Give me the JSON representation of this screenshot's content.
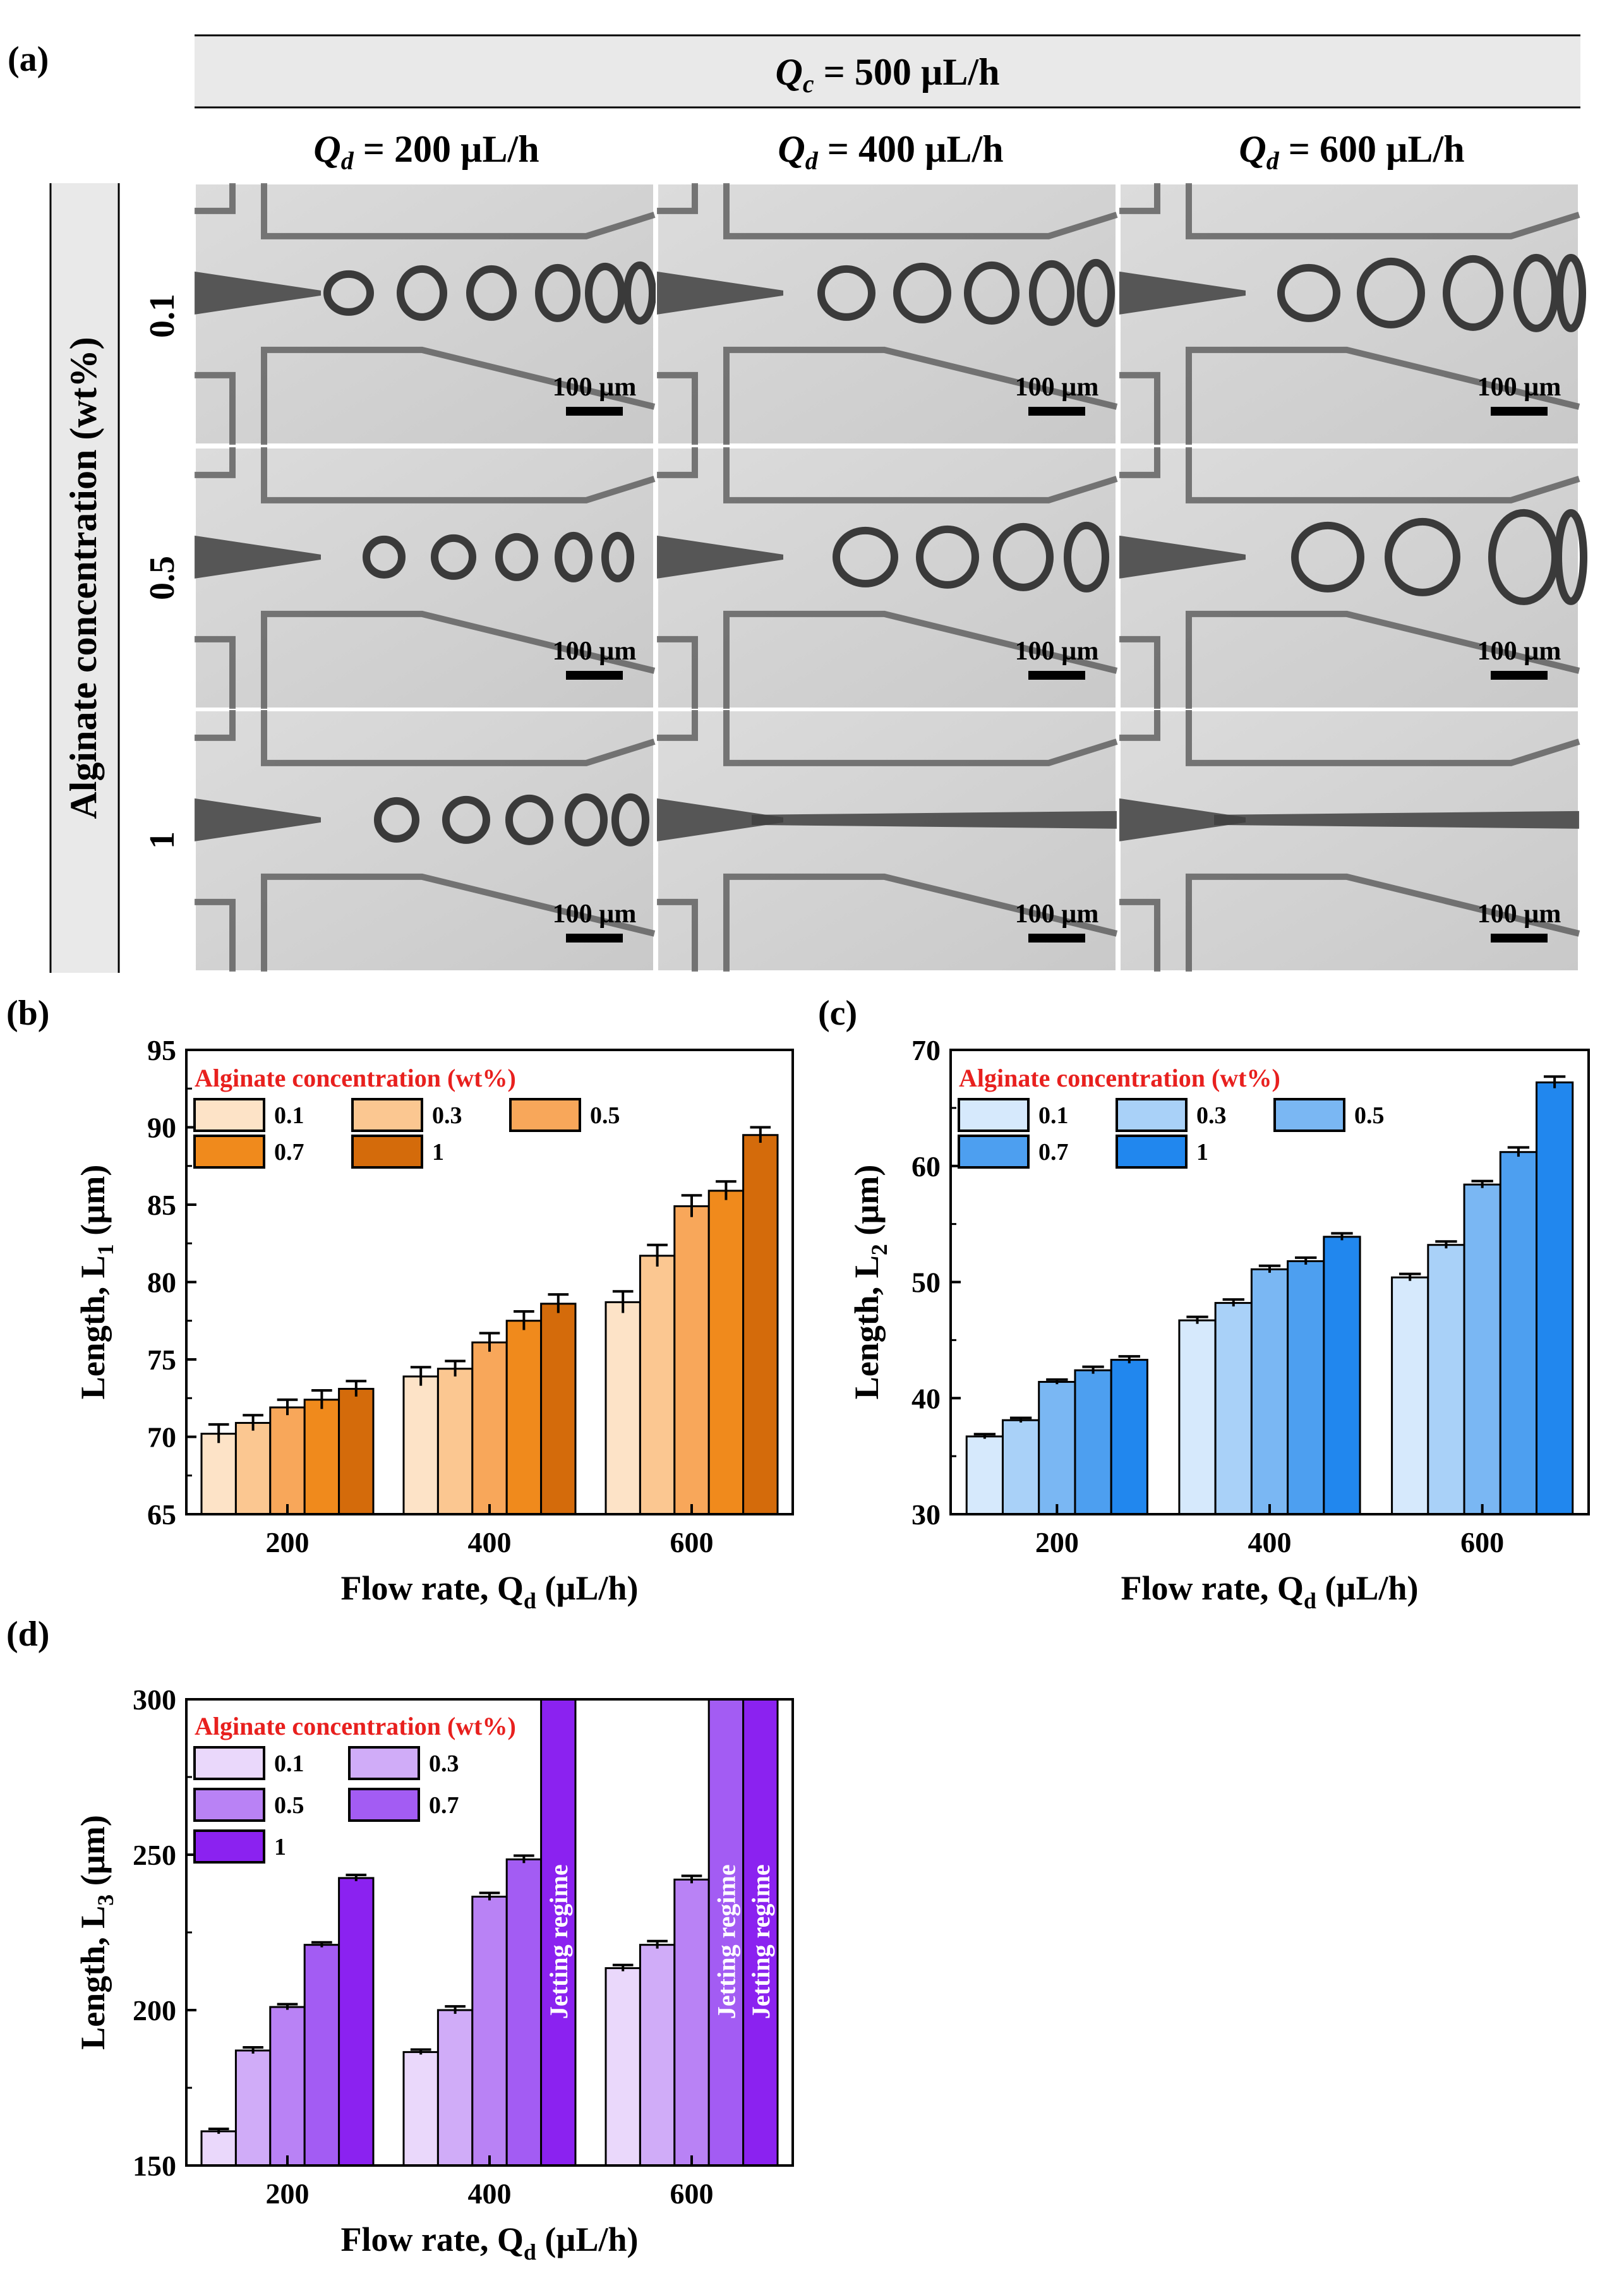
{
  "panel_a": {
    "label": "(a)",
    "top_header_var": "Q",
    "top_header_sub": "c",
    "top_header_rest": " = 500 µL/h",
    "col_var": "Q",
    "col_sub": "d",
    "columns": [
      " = 200 µL/h",
      " = 400 µL/h",
      " = 600 µL/h"
    ],
    "row_axis_title": "Alginate concentration (wt%)",
    "rows": [
      "0.1",
      "0.5",
      "1"
    ],
    "scale_bar_label": "100 µm"
  },
  "colors": {
    "orange": [
      "#fde3c7",
      "#fbc791",
      "#f8a75a",
      "#f08a1c",
      "#d46b0b"
    ],
    "blue": [
      "#d6e9fc",
      "#a9d1f8",
      "#7ab7f3",
      "#4d9ff0",
      "#2187ee"
    ],
    "purple": [
      "#ead8fb",
      "#d0acf8",
      "#b982f5",
      "#a35cf3",
      "#8b22f0"
    ],
    "legend_title": "#e8201e"
  },
  "chart_data": [
    {
      "id": "b",
      "panel_label": "(b)",
      "type": "bar",
      "categories": [
        "200",
        "400",
        "600"
      ],
      "legend_title": "Alginate concentration (wt%)",
      "series": [
        {
          "name": "0.1",
          "values": [
            70.2,
            73.9,
            78.7
          ],
          "err": [
            0.6,
            0.6,
            0.7
          ]
        },
        {
          "name": "0.3",
          "values": [
            70.9,
            74.4,
            81.7
          ],
          "err": [
            0.5,
            0.5,
            0.7
          ]
        },
        {
          "name": "0.5",
          "values": [
            71.9,
            76.1,
            84.9
          ],
          "err": [
            0.5,
            0.6,
            0.7
          ]
        },
        {
          "name": "0.7",
          "values": [
            72.4,
            77.5,
            85.9
          ],
          "err": [
            0.6,
            0.6,
            0.6
          ]
        },
        {
          "name": "1",
          "values": [
            73.1,
            78.6,
            89.5
          ],
          "err": [
            0.5,
            0.6,
            0.5
          ]
        }
      ],
      "ylabel_main": "Length, L",
      "ylabel_sub": "1",
      "ylabel_unit": " (µm)",
      "xlabel_main": "Flow rate, Q",
      "xlabel_sub": "d",
      "xlabel_unit": " (µL/h)",
      "ylim": [
        65,
        95
      ],
      "yticks": [
        "65",
        "70",
        "75",
        "80",
        "85",
        "90",
        "95"
      ],
      "annotations": []
    },
    {
      "id": "c",
      "panel_label": "(c)",
      "type": "bar",
      "categories": [
        "200",
        "400",
        "600"
      ],
      "legend_title": "Alginate concentration (wt%)",
      "series": [
        {
          "name": "0.1",
          "values": [
            36.7,
            46.7,
            50.4
          ],
          "err": [
            0.2,
            0.3,
            0.3
          ]
        },
        {
          "name": "0.3",
          "values": [
            38.1,
            48.2,
            53.2
          ],
          "err": [
            0.2,
            0.3,
            0.3
          ]
        },
        {
          "name": "0.5",
          "values": [
            41.4,
            51.1,
            58.4
          ],
          "err": [
            0.2,
            0.3,
            0.3
          ]
        },
        {
          "name": "0.7",
          "values": [
            42.4,
            51.8,
            61.2
          ],
          "err": [
            0.3,
            0.3,
            0.4
          ]
        },
        {
          "name": "1",
          "values": [
            43.3,
            53.9,
            67.2
          ],
          "err": [
            0.3,
            0.3,
            0.5
          ]
        }
      ],
      "ylabel_main": "Length, L",
      "ylabel_sub": "2",
      "ylabel_unit": " (µm)",
      "xlabel_main": "Flow rate, Q",
      "xlabel_sub": "d",
      "xlabel_unit": " (µL/h)",
      "ylim": [
        30,
        70
      ],
      "yticks": [
        "30",
        "40",
        "50",
        "60",
        "70"
      ],
      "annotations": []
    },
    {
      "id": "d",
      "panel_label": "(d)",
      "type": "bar",
      "categories": [
        "200",
        "400",
        "600"
      ],
      "legend_title": "Alginate concentration (wt%)",
      "series": [
        {
          "name": "0.1",
          "values": [
            161,
            186.5,
            213.5
          ],
          "err": [
            0.8,
            0.8,
            1.0
          ]
        },
        {
          "name": "0.3",
          "values": [
            187,
            200,
            221
          ],
          "err": [
            1.0,
            1.2,
            1.2
          ]
        },
        {
          "name": "0.5",
          "values": [
            201,
            236.5,
            242
          ],
          "err": [
            0.9,
            1.2,
            1.2
          ]
        },
        {
          "name": "0.7",
          "values": [
            221,
            248.5,
            300
          ],
          "err": [
            0.8,
            1.2,
            0
          ]
        },
        {
          "name": "1",
          "values": [
            242.5,
            300,
            300
          ],
          "err": [
            1.0,
            0,
            0
          ]
        }
      ],
      "ylabel_main": "Length, L",
      "ylabel_sub": "3",
      "ylabel_unit": " (µm)",
      "xlabel_main": "Flow rate, Q",
      "xlabel_sub": "d",
      "xlabel_unit": " (µL/h)",
      "ylim": [
        150,
        300
      ],
      "yticks": [
        "150",
        "200",
        "250",
        "300"
      ],
      "annotations": [
        {
          "text": "Jetting regime",
          "category": 1,
          "series": 4
        },
        {
          "text": "Jetting regime",
          "category": 2,
          "series": 3
        },
        {
          "text": "Jetting regime",
          "category": 2,
          "series": 4
        }
      ]
    }
  ]
}
